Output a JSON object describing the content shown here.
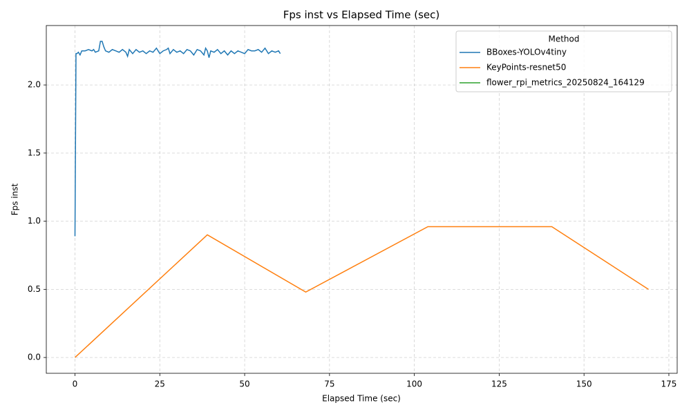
{
  "chart_data": {
    "type": "line",
    "title": "Fps inst vs Elapsed Time (sec)",
    "x_label": "Elapsed Time (sec)",
    "y_label": "Fps inst",
    "legend_title": "Method",
    "legend": "upper right",
    "grid": true,
    "xlim": [
      -8.45,
      177.45
    ],
    "ylim": [
      -0.116,
      2.436
    ],
    "xticks": [
      0,
      25,
      50,
      75,
      100,
      125,
      150,
      175
    ],
    "yticks": [
      {
        "value": 0,
        "label": "0.0"
      },
      {
        "value": 0.5,
        "label": "0.5"
      },
      {
        "value": 1,
        "label": "1.0"
      },
      {
        "value": 1.5,
        "label": "1.5"
      },
      {
        "value": 2,
        "label": "2.0"
      }
    ],
    "series": [
      {
        "name": "BBoxes-YOLOv4tiny",
        "color": "#1f77b4",
        "x": [
          0,
          0.3,
          0.6,
          1,
          1.5,
          2,
          3,
          4,
          5,
          5.5,
          6,
          7,
          7.5,
          8,
          8.5,
          9,
          10,
          11,
          12,
          13,
          14,
          15,
          15.5,
          16,
          17,
          18,
          19,
          20,
          21,
          22,
          23,
          24,
          25,
          26,
          27,
          27.5,
          28,
          29,
          30,
          31,
          32,
          33,
          34,
          35,
          36,
          37,
          38,
          38.5,
          39,
          39.5,
          40,
          41,
          42,
          43,
          44,
          45,
          46,
          47,
          48,
          49,
          50,
          51,
          52,
          53,
          54,
          55,
          56,
          57,
          58,
          59,
          60,
          60.5
        ],
        "values": [
          0.89,
          2.23,
          2.23,
          2.24,
          2.22,
          2.25,
          2.25,
          2.26,
          2.25,
          2.26,
          2.24,
          2.25,
          2.32,
          2.32,
          2.28,
          2.25,
          2.24,
          2.26,
          2.25,
          2.24,
          2.26,
          2.24,
          2.21,
          2.26,
          2.23,
          2.26,
          2.24,
          2.25,
          2.23,
          2.25,
          2.24,
          2.27,
          2.23,
          2.25,
          2.26,
          2.27,
          2.23,
          2.26,
          2.24,
          2.25,
          2.23,
          2.26,
          2.25,
          2.22,
          2.26,
          2.25,
          2.22,
          2.27,
          2.25,
          2.2,
          2.25,
          2.24,
          2.26,
          2.23,
          2.25,
          2.22,
          2.25,
          2.23,
          2.25,
          2.24,
          2.23,
          2.26,
          2.25,
          2.25,
          2.26,
          2.24,
          2.27,
          2.23,
          2.25,
          2.24,
          2.25,
          2.23
        ]
      },
      {
        "name": "KeyPoints-resnet50",
        "color": "#ff7f0e",
        "x": [
          0,
          39,
          68,
          104,
          140.5,
          169
        ],
        "values": [
          0,
          0.9,
          0.48,
          0.96,
          0.96,
          0.5
        ]
      },
      {
        "name": "flower_rpi_metrics_20250824_164129",
        "color": "#2ca02c",
        "x": [],
        "values": []
      }
    ]
  }
}
